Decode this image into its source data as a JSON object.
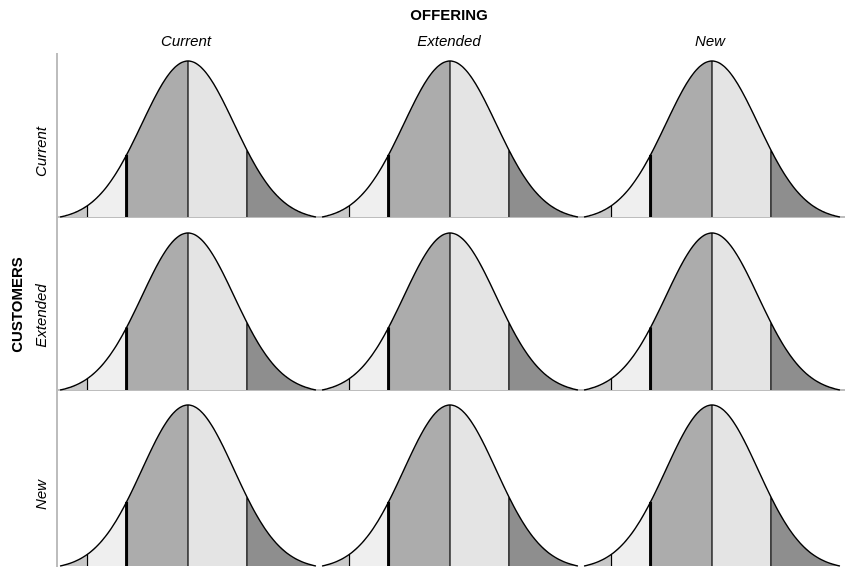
{
  "offering_axis": {
    "title": "OFFERING",
    "categories": [
      "Current",
      "Extended",
      "New"
    ]
  },
  "customers_axis": {
    "title": "CUSTOMERS",
    "categories": [
      "Current",
      "Extended",
      "New"
    ]
  },
  "grid": {
    "rows": 3,
    "cols": 3
  },
  "bell_segments": {
    "colors": [
      "#c8c8c8",
      "#efefef",
      "#acacac",
      "#e4e4e4",
      "#8e8e8e"
    ],
    "outline_color": "#000000",
    "separator_color": "#000000"
  }
}
